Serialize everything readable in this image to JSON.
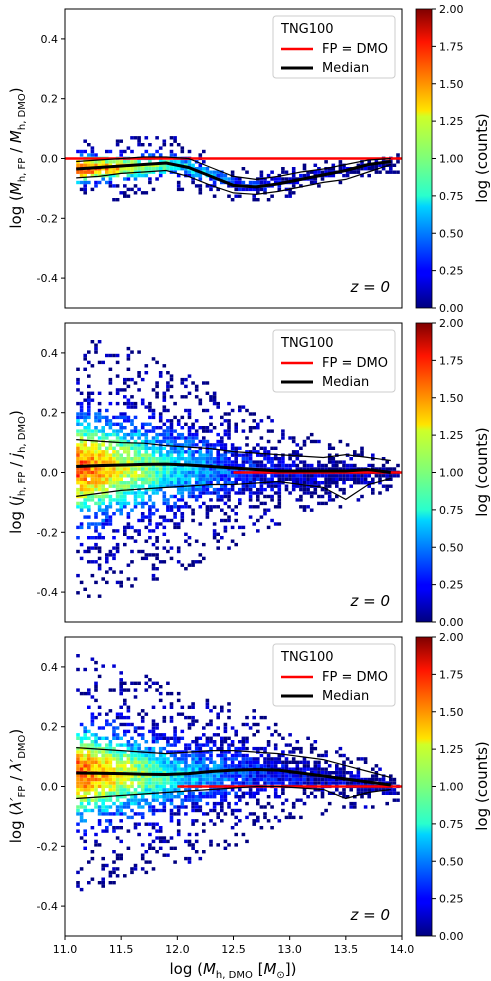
{
  "chart_data": [
    {
      "type": "heatmap",
      "ylabel": "log (M_h,FP / M_h,DMO)",
      "xlim": [
        11.0,
        14.0
      ],
      "ylim": [
        -0.5,
        0.5
      ],
      "yticks": [
        -0.4,
        -0.2,
        0.0,
        0.2,
        0.4
      ],
      "legend": {
        "title": "TNG100",
        "entries": [
          {
            "label": "FP = DMO",
            "color": "#ff0000"
          },
          {
            "label": "Median",
            "color": "#000000"
          }
        ],
        "placement": "top-right"
      },
      "annotation": "z = 0",
      "colorbar": {
        "label": "log (counts)",
        "range": [
          0.0,
          2.0
        ],
        "ticks": [
          "0.00",
          "0.25",
          "0.50",
          "0.75",
          "1.00",
          "1.25",
          "1.50",
          "1.75",
          "2.00"
        ]
      },
      "reference_line_y": 0.0,
      "distribution": {
        "center": [
          [
            11.1,
            -0.03
          ],
          [
            11.5,
            -0.025
          ],
          [
            12.0,
            -0.015
          ],
          [
            12.3,
            -0.05
          ],
          [
            12.6,
            -0.09
          ],
          [
            13.0,
            -0.07
          ],
          [
            13.5,
            -0.03
          ],
          [
            13.9,
            -0.01
          ]
        ],
        "spread": [
          [
            11.1,
            0.12
          ],
          [
            12.0,
            0.09
          ],
          [
            12.5,
            0.06
          ],
          [
            13.0,
            0.05
          ],
          [
            13.9,
            0.03
          ]
        ],
        "density": [
          [
            11.1,
            1.7
          ],
          [
            11.6,
            1.2
          ],
          [
            12.0,
            0.8
          ],
          [
            12.5,
            0.4
          ],
          [
            13.0,
            0.2
          ],
          [
            13.9,
            0.05
          ]
        ]
      },
      "series": [
        {
          "name": "Median",
          "role": "median",
          "x": [
            11.1,
            11.3,
            11.5,
            11.7,
            11.9,
            12.1,
            12.3,
            12.5,
            12.7,
            12.9,
            13.1,
            13.3,
            13.5,
            13.7,
            13.9
          ],
          "y": [
            -0.035,
            -0.03,
            -0.025,
            -0.02,
            -0.015,
            -0.03,
            -0.06,
            -0.09,
            -0.095,
            -0.085,
            -0.07,
            -0.055,
            -0.04,
            -0.02,
            -0.01
          ]
        },
        {
          "role": "upper",
          "x": [
            11.1,
            11.3,
            11.5,
            11.7,
            11.9,
            12.1,
            12.3,
            12.5,
            12.7,
            12.9,
            13.1,
            13.3,
            13.5,
            13.7,
            13.9
          ],
          "y": [
            -0.01,
            -0.005,
            0.0,
            0.005,
            0.005,
            0.0,
            -0.03,
            -0.06,
            -0.07,
            -0.06,
            -0.045,
            -0.035,
            -0.02,
            -0.005,
            0.0
          ]
        },
        {
          "role": "lower",
          "x": [
            11.1,
            11.3,
            11.5,
            11.7,
            11.9,
            12.1,
            12.3,
            12.5,
            12.7,
            12.9,
            13.1,
            13.3,
            13.5,
            13.7,
            13.9
          ],
          "y": [
            -0.065,
            -0.06,
            -0.05,
            -0.045,
            -0.04,
            -0.06,
            -0.09,
            -0.115,
            -0.12,
            -0.11,
            -0.095,
            -0.08,
            -0.07,
            -0.045,
            -0.02
          ]
        }
      ]
    },
    {
      "type": "heatmap",
      "ylabel": "log (j_h,FP / j_h,DMO)",
      "xlim": [
        11.0,
        14.0
      ],
      "ylim": [
        -0.5,
        0.5
      ],
      "yticks": [
        -0.4,
        -0.2,
        0.0,
        0.2,
        0.4
      ],
      "legend": {
        "title": "TNG100",
        "entries": [
          {
            "label": "FP = DMO",
            "color": "#ff0000"
          },
          {
            "label": "Median",
            "color": "#000000"
          }
        ],
        "placement": "top-right"
      },
      "annotation": "z = 0",
      "colorbar": {
        "label": "log (counts)",
        "range": [
          0.0,
          2.0
        ],
        "ticks": [
          "0.00",
          "0.25",
          "0.50",
          "0.75",
          "1.00",
          "1.25",
          "1.50",
          "1.75",
          "2.00"
        ]
      },
      "reference_line_y": 0.0,
      "distribution": {
        "center": [
          [
            11.1,
            0.02
          ],
          [
            12.0,
            0.02
          ],
          [
            13.0,
            0.0
          ],
          [
            13.9,
            0.0
          ]
        ],
        "spread": [
          [
            11.1,
            0.45
          ],
          [
            12.0,
            0.35
          ],
          [
            12.5,
            0.25
          ],
          [
            13.0,
            0.15
          ],
          [
            13.9,
            0.07
          ]
        ],
        "density": [
          [
            11.1,
            1.6
          ],
          [
            11.6,
            1.1
          ],
          [
            12.0,
            0.7
          ],
          [
            12.5,
            0.35
          ],
          [
            13.0,
            0.15
          ],
          [
            13.9,
            0.05
          ]
        ]
      },
      "series": [
        {
          "name": "Median",
          "role": "median",
          "x": [
            11.1,
            11.3,
            11.5,
            11.7,
            11.9,
            12.1,
            12.3,
            12.5,
            12.7,
            12.9,
            13.1,
            13.3,
            13.5,
            13.7,
            13.9
          ],
          "y": [
            0.02,
            0.023,
            0.025,
            0.027,
            0.028,
            0.025,
            0.02,
            0.015,
            0.01,
            0.005,
            0.005,
            0.005,
            0.005,
            0.01,
            0.0
          ]
        },
        {
          "role": "upper",
          "x": [
            11.1,
            11.3,
            11.5,
            11.7,
            11.9,
            12.1,
            12.3,
            12.5,
            12.7,
            12.9,
            13.1,
            13.3,
            13.5,
            13.7,
            13.9
          ],
          "y": [
            0.11,
            0.105,
            0.1,
            0.098,
            0.09,
            0.085,
            0.08,
            0.07,
            0.065,
            0.06,
            0.055,
            0.05,
            0.06,
            0.05,
            0.04
          ]
        },
        {
          "role": "lower",
          "x": [
            11.1,
            11.3,
            11.5,
            11.7,
            11.9,
            12.1,
            12.3,
            12.5,
            12.7,
            12.9,
            13.1,
            13.3,
            13.5,
            13.7,
            13.9
          ],
          "y": [
            -0.08,
            -0.07,
            -0.06,
            -0.055,
            -0.05,
            -0.045,
            -0.04,
            -0.04,
            -0.035,
            -0.03,
            -0.04,
            -0.05,
            -0.09,
            -0.04,
            -0.02
          ]
        }
      ]
    },
    {
      "type": "heatmap",
      "ylabel": "log (λ'_FP / λ'_DMO)",
      "xlabel": "log (M_h,DMO [M_⊙])",
      "xlim": [
        11.0,
        14.0
      ],
      "ylim": [
        -0.5,
        0.5
      ],
      "xticks": [
        "11.0",
        "11.5",
        "12.0",
        "12.5",
        "13.0",
        "13.5",
        "14.0"
      ],
      "yticks": [
        -0.4,
        -0.2,
        0.0,
        0.2,
        0.4
      ],
      "legend": {
        "title": "TNG100",
        "entries": [
          {
            "label": "FP = DMO",
            "color": "#ff0000"
          },
          {
            "label": "Median",
            "color": "#000000"
          }
        ],
        "placement": "top-right"
      },
      "annotation": "z = 0",
      "colorbar": {
        "label": "log (counts)",
        "range": [
          0.0,
          2.0
        ],
        "ticks": [
          "0.00",
          "0.25",
          "0.50",
          "0.75",
          "1.00",
          "1.25",
          "1.50",
          "1.75",
          "2.00"
        ]
      },
      "reference_line_y": 0.0,
      "distribution": {
        "center": [
          [
            11.1,
            0.05
          ],
          [
            12.0,
            0.04
          ],
          [
            12.7,
            0.05
          ],
          [
            13.3,
            0.03
          ],
          [
            13.9,
            0.0
          ]
        ],
        "spread": [
          [
            11.1,
            0.4
          ],
          [
            12.0,
            0.3
          ],
          [
            12.5,
            0.25
          ],
          [
            13.0,
            0.15
          ],
          [
            13.9,
            0.07
          ]
        ],
        "density": [
          [
            11.1,
            1.6
          ],
          [
            11.6,
            1.1
          ],
          [
            12.0,
            0.7
          ],
          [
            12.5,
            0.4
          ],
          [
            13.0,
            0.2
          ],
          [
            13.9,
            0.05
          ]
        ]
      },
      "series": [
        {
          "name": "Median",
          "role": "median",
          "x": [
            11.1,
            11.3,
            11.5,
            11.7,
            11.9,
            12.1,
            12.3,
            12.5,
            12.7,
            12.9,
            13.1,
            13.3,
            13.5,
            13.7,
            13.9
          ],
          "y": [
            0.045,
            0.044,
            0.043,
            0.041,
            0.04,
            0.043,
            0.05,
            0.055,
            0.057,
            0.055,
            0.045,
            0.035,
            0.025,
            0.015,
            0.005
          ]
        },
        {
          "role": "upper",
          "x": [
            11.1,
            11.3,
            11.5,
            11.7,
            11.9,
            12.1,
            12.3,
            12.5,
            12.7,
            12.9,
            13.1,
            13.3,
            13.5,
            13.7,
            13.9
          ],
          "y": [
            0.13,
            0.125,
            0.12,
            0.115,
            0.11,
            0.115,
            0.12,
            0.12,
            0.115,
            0.11,
            0.1,
            0.09,
            0.07,
            0.05,
            0.03
          ]
        },
        {
          "role": "lower",
          "x": [
            11.1,
            11.3,
            11.5,
            11.7,
            11.9,
            12.1,
            12.3,
            12.5,
            12.7,
            12.9,
            13.1,
            13.3,
            13.5,
            13.7,
            13.9
          ],
          "y": [
            -0.04,
            -0.035,
            -0.03,
            -0.025,
            -0.02,
            -0.015,
            -0.01,
            -0.005,
            0.0,
            0.0,
            -0.005,
            -0.01,
            -0.04,
            -0.02,
            -0.01
          ]
        }
      ]
    }
  ]
}
